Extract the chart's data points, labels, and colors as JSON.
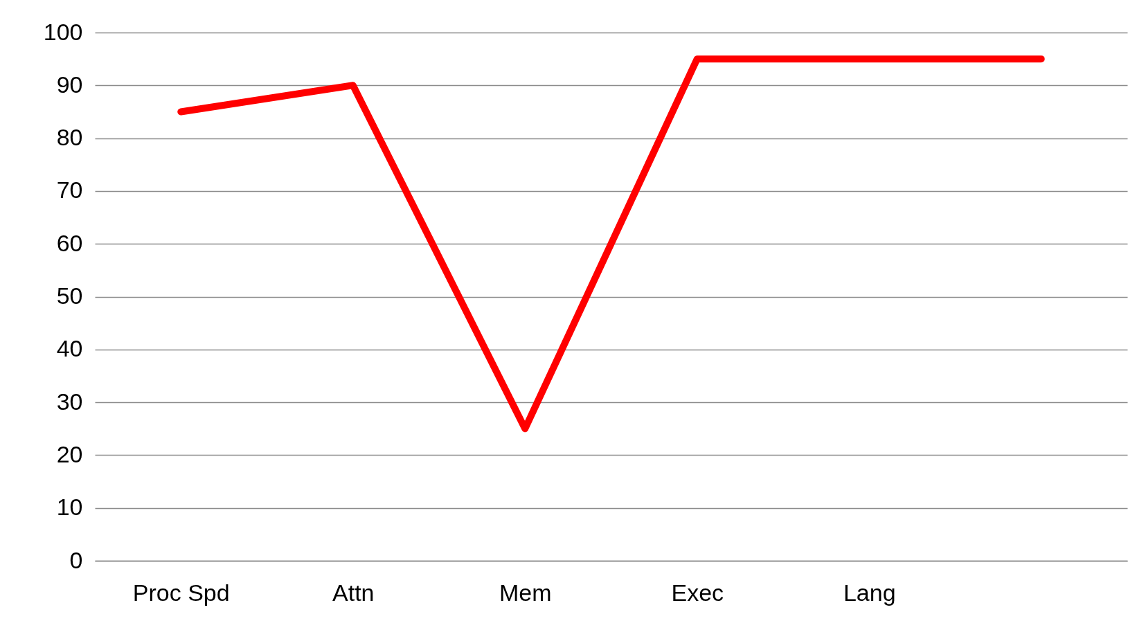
{
  "chart_data": {
    "type": "line",
    "categories": [
      "Proc Spd",
      "Attn",
      "Mem",
      "Exec",
      "Lang",
      null
    ],
    "series": [
      {
        "color": "#ff0000",
        "values": [
          85,
          90,
          25,
          95,
          95,
          95
        ]
      }
    ],
    "ylim": [
      0,
      100
    ],
    "yticks": [
      0,
      10,
      20,
      30,
      40,
      50,
      60,
      70,
      80,
      90,
      100
    ],
    "grid": "y",
    "marker": "none",
    "line_style": "solid"
  }
}
